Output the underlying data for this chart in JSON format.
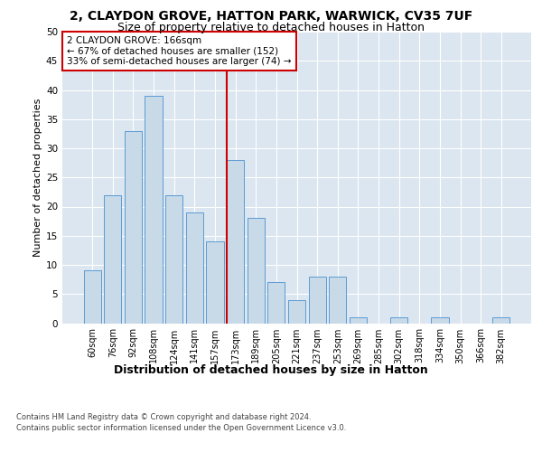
{
  "title_line1": "2, CLAYDON GROVE, HATTON PARK, WARWICK, CV35 7UF",
  "title_line2": "Size of property relative to detached houses in Hatton",
  "xlabel": "Distribution of detached houses by size in Hatton",
  "ylabel": "Number of detached properties",
  "categories": [
    "60sqm",
    "76sqm",
    "92sqm",
    "108sqm",
    "124sqm",
    "141sqm",
    "157sqm",
    "173sqm",
    "189sqm",
    "205sqm",
    "221sqm",
    "237sqm",
    "253sqm",
    "269sqm",
    "285sqm",
    "302sqm",
    "318sqm",
    "334sqm",
    "350sqm",
    "366sqm",
    "382sqm"
  ],
  "values": [
    9,
    22,
    33,
    39,
    22,
    19,
    14,
    28,
    18,
    7,
    4,
    8,
    8,
    1,
    0,
    1,
    0,
    1,
    0,
    0,
    1
  ],
  "bar_color": "#c8d9e8",
  "bar_edge_color": "#5b9bd5",
  "vline_bar_index": 7,
  "vline_color": "#cc0000",
  "annotation_text": "2 CLAYDON GROVE: 166sqm\n← 67% of detached houses are smaller (152)\n33% of semi-detached houses are larger (74) →",
  "annotation_box_color": "#ffffff",
  "annotation_box_edge": "#cc0000",
  "ylim": [
    0,
    50
  ],
  "yticks": [
    0,
    5,
    10,
    15,
    20,
    25,
    30,
    35,
    40,
    45,
    50
  ],
  "background_color": "#dce6f0",
  "footer_line1": "Contains HM Land Registry data © Crown copyright and database right 2024.",
  "footer_line2": "Contains public sector information licensed under the Open Government Licence v3.0.",
  "title_fontsize": 10,
  "subtitle_fontsize": 9,
  "tick_fontsize": 7,
  "ylabel_fontsize": 8,
  "xlabel_fontsize": 9,
  "annotation_fontsize": 7.5
}
